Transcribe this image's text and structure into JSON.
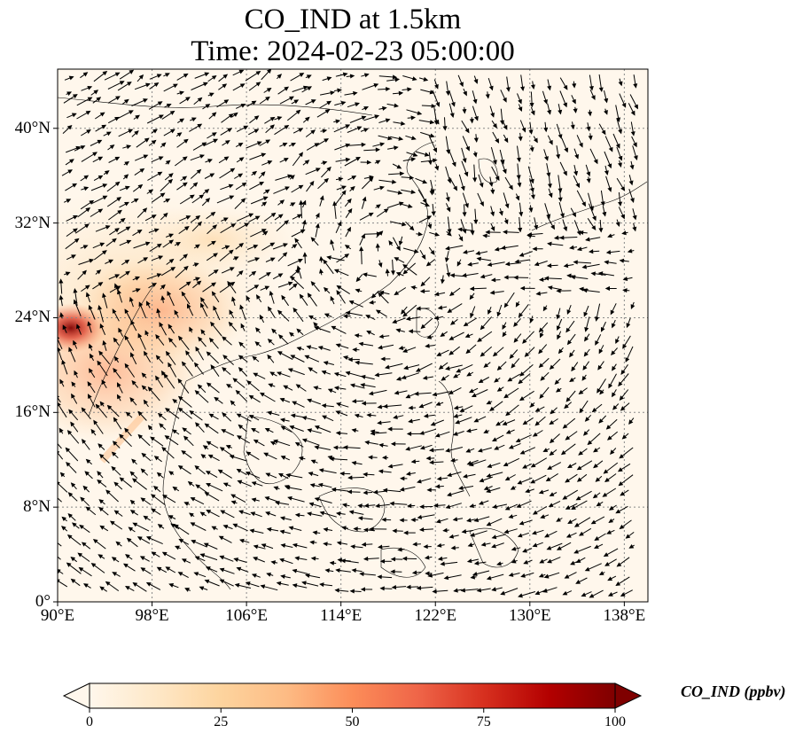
{
  "title": {
    "line1": "CO_IND at 1.5km",
    "line2": "Time: 2024-02-23 05:00:00"
  },
  "axes": {
    "lon_labels": [
      "90°E",
      "98°E",
      "106°E",
      "114°E",
      "122°E",
      "130°E",
      "138°E"
    ],
    "lon_values": [
      90,
      98,
      106,
      114,
      122,
      130,
      138
    ],
    "lat_labels": [
      "0°",
      "8°N",
      "16°N",
      "24°N",
      "32°N",
      "40°N"
    ],
    "lat_values": [
      0,
      8,
      16,
      24,
      32,
      40
    ],
    "lon_range": [
      90,
      140
    ],
    "lat_range": [
      0,
      45
    ],
    "gridlines": true
  },
  "colorbar": {
    "label": "CO_IND (ppbv)",
    "ticks": [
      "0",
      "25",
      "50",
      "75",
      "100"
    ],
    "tick_values": [
      0,
      25,
      50,
      75,
      100
    ],
    "range": [
      0,
      100
    ],
    "extend": "both",
    "colors": [
      "#fff7ec",
      "#fee8c8",
      "#fdd49e",
      "#fdbb84",
      "#fc8d59",
      "#ef6548",
      "#d7301f",
      "#b30000",
      "#7f0000"
    ]
  },
  "chart_data": {
    "type": "heatmap",
    "variable": "CO_IND",
    "units": "ppbv",
    "level": "1.5km",
    "time": "2024-02-23 05:00:00",
    "overlay": "wind vectors",
    "high_concentration_regions": [
      {
        "lon": 91,
        "lat": 23.5,
        "value": 100
      },
      {
        "lon": 94,
        "lat": 18,
        "value": 40
      },
      {
        "lon": 98,
        "lat": 24,
        "value": 30
      },
      {
        "lon": 100,
        "lat": 28,
        "value": 20
      }
    ]
  }
}
